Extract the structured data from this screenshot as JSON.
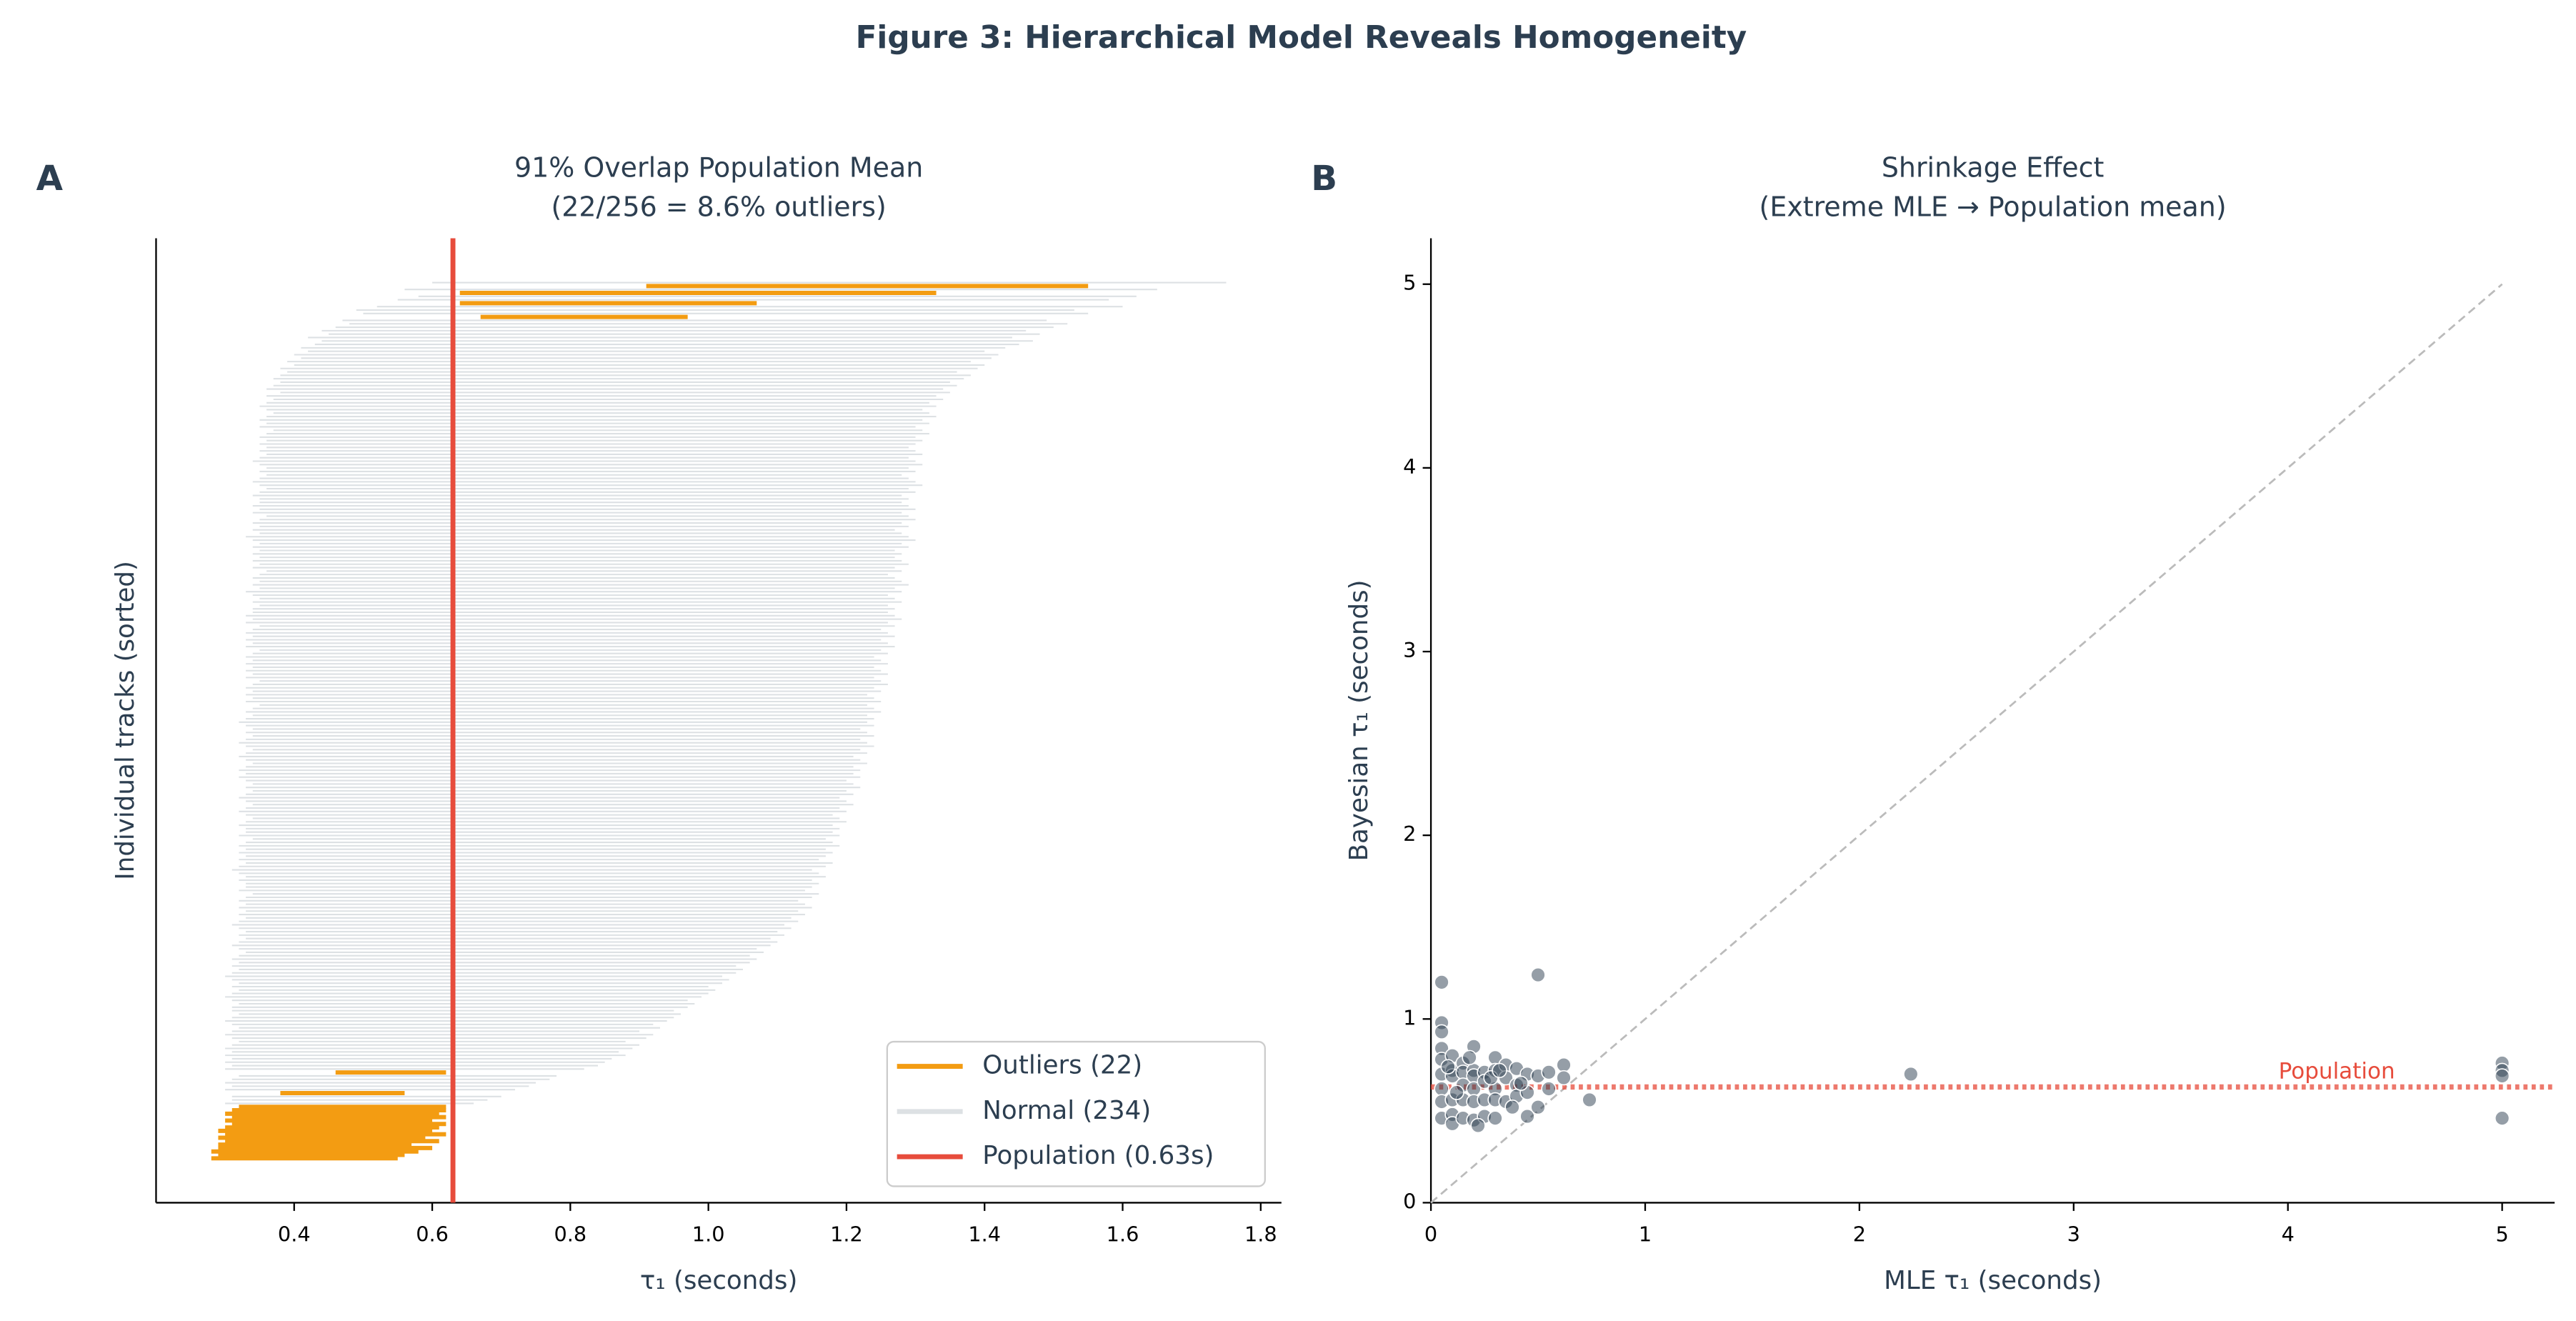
{
  "title": "Figure 3: Hierarchical Model Reveals Homogeneity",
  "chart_data": [
    {
      "type": "interval",
      "panel": "A",
      "title": [
        "91% Overlap Population Mean",
        "(22/256 = 8.6% outliers)"
      ],
      "xlabel": "τ₁ (seconds)",
      "ylabel": "Individual tracks (sorted)",
      "xlim": [
        0.2,
        1.83
      ],
      "xticks": [
        0.4,
        0.6,
        0.8,
        {
          "value": 1,
          "label": "1.0"
        },
        1.2,
        1.4,
        1.6,
        1.8
      ],
      "population": 0.63,
      "legend_loc": "lower right",
      "series": [
        {
          "name": "Outliers (22)",
          "color": "#f39c12"
        },
        {
          "name": "Normal (234)",
          "color": "#dde1e4"
        },
        {
          "name": "Population (0.63s)",
          "color": "#e74c3c"
        }
      ],
      "low": [
        0.28,
        0.29,
        0.28,
        0.29,
        0.29,
        0.3,
        0.29,
        0.3,
        0.29,
        0.3,
        0.31,
        0.3,
        0.31,
        0.3,
        0.31,
        0.32,
        0.3,
        0.31,
        0.31,
        0.38,
        0.3,
        0.31,
        0.3,
        0.31,
        0.32,
        0.46,
        0.3,
        0.31,
        0.3,
        0.31,
        0.3,
        0.31,
        0.3,
        0.31,
        0.32,
        0.31,
        0.3,
        0.31,
        0.32,
        0.31,
        0.3,
        0.31,
        0.32,
        0.31,
        0.31,
        0.32,
        0.31,
        0.3,
        0.31,
        0.32,
        0.31,
        0.32,
        0.31,
        0.3,
        0.31,
        0.32,
        0.31,
        0.32,
        0.31,
        0.32,
        0.33,
        0.32,
        0.31,
        0.32,
        0.33,
        0.32,
        0.33,
        0.32,
        0.31,
        0.32,
        0.33,
        0.32,
        0.33,
        0.32,
        0.33,
        0.32,
        0.33,
        0.34,
        0.32,
        0.33,
        0.33,
        0.32,
        0.33,
        0.32,
        0.31,
        0.32,
        0.33,
        0.32,
        0.33,
        0.32,
        0.33,
        0.32,
        0.33,
        0.34,
        0.32,
        0.33,
        0.33,
        0.32,
        0.33,
        0.34,
        0.33,
        0.32,
        0.33,
        0.34,
        0.33,
        0.32,
        0.33,
        0.34,
        0.33,
        0.34,
        0.33,
        0.32,
        0.33,
        0.32,
        0.33,
        0.34,
        0.33,
        0.32,
        0.33,
        0.34,
        0.33,
        0.32,
        0.33,
        0.34,
        0.33,
        0.34,
        0.33,
        0.32,
        0.33,
        0.34,
        0.33,
        0.34,
        0.35,
        0.33,
        0.34,
        0.33,
        0.34,
        0.33,
        0.34,
        0.35,
        0.33,
        0.34,
        0.33,
        0.34,
        0.33,
        0.34,
        0.33,
        0.34,
        0.35,
        0.33,
        0.34,
        0.33,
        0.34,
        0.33,
        0.34,
        0.35,
        0.33,
        0.34,
        0.33,
        0.34,
        0.34,
        0.35,
        0.34,
        0.35,
        0.34,
        0.33,
        0.35,
        0.34,
        0.35,
        0.34,
        0.35,
        0.36,
        0.34,
        0.35,
        0.34,
        0.35,
        0.34,
        0.35,
        0.34,
        0.35,
        0.34,
        0.33,
        0.35,
        0.34,
        0.35,
        0.34,
        0.35,
        0.36,
        0.34,
        0.35,
        0.34,
        0.35,
        0.35,
        0.34,
        0.35,
        0.36,
        0.35,
        0.34,
        0.35,
        0.36,
        0.35,
        0.36,
        0.35,
        0.34,
        0.35,
        0.36,
        0.35,
        0.36,
        0.35,
        0.36,
        0.35,
        0.36,
        0.37,
        0.35,
        0.36,
        0.35,
        0.36,
        0.37,
        0.36,
        0.35,
        0.36,
        0.37,
        0.36,
        0.38,
        0.36,
        0.37,
        0.38,
        0.37,
        0.38,
        0.39,
        0.38,
        0.4,
        0.39,
        0.41,
        0.4,
        0.42,
        0.41,
        0.43,
        0.44,
        0.42,
        0.45,
        0.44,
        0.46,
        0.48,
        0.47,
        0.67,
        0.5,
        0.49,
        0.52,
        0.64,
        0.55,
        0.58,
        0.64,
        0.56,
        0.91,
        0.6
      ],
      "high": [
        0.55,
        0.56,
        0.58,
        0.6,
        0.57,
        0.61,
        0.59,
        0.62,
        0.6,
        0.61,
        0.62,
        0.6,
        0.62,
        0.61,
        0.62,
        0.62,
        0.66,
        0.68,
        0.7,
        0.56,
        0.72,
        0.74,
        0.75,
        0.77,
        0.78,
        0.62,
        0.82,
        0.84,
        0.85,
        0.86,
        0.88,
        0.87,
        0.89,
        0.9,
        0.88,
        0.91,
        0.92,
        0.9,
        0.93,
        0.92,
        0.94,
        0.95,
        0.96,
        0.95,
        0.97,
        0.98,
        0.97,
        0.99,
        1.0,
        1.01,
        1.0,
        1.02,
        1.03,
        1.02,
        1.04,
        1.05,
        1.04,
        1.06,
        1.07,
        1.06,
        1.08,
        1.07,
        1.09,
        1.1,
        1.09,
        1.11,
        1.1,
        1.12,
        1.11,
        1.13,
        1.12,
        1.14,
        1.13,
        1.15,
        1.14,
        1.13,
        1.15,
        1.16,
        1.14,
        1.15,
        1.16,
        1.15,
        1.17,
        1.16,
        1.15,
        1.17,
        1.18,
        1.16,
        1.17,
        1.18,
        1.17,
        1.19,
        1.18,
        1.17,
        1.19,
        1.18,
        1.19,
        1.18,
        1.2,
        1.19,
        1.18,
        1.2,
        1.19,
        1.21,
        1.2,
        1.19,
        1.21,
        1.2,
        1.22,
        1.21,
        1.2,
        1.22,
        1.21,
        1.22,
        1.21,
        1.23,
        1.22,
        1.21,
        1.23,
        1.22,
        1.24,
        1.23,
        1.22,
        1.24,
        1.23,
        1.22,
        1.24,
        1.23,
        1.24,
        1.23,
        1.25,
        1.24,
        1.23,
        1.25,
        1.24,
        1.23,
        1.25,
        1.24,
        1.26,
        1.25,
        1.24,
        1.26,
        1.25,
        1.24,
        1.26,
        1.25,
        1.24,
        1.26,
        1.25,
        1.27,
        1.26,
        1.25,
        1.27,
        1.26,
        1.25,
        1.27,
        1.26,
        1.28,
        1.27,
        1.26,
        1.27,
        1.26,
        1.28,
        1.27,
        1.26,
        1.28,
        1.27,
        1.29,
        1.28,
        1.27,
        1.26,
        1.28,
        1.27,
        1.29,
        1.28,
        1.27,
        1.28,
        1.27,
        1.29,
        1.28,
        1.3,
        1.29,
        1.28,
        1.27,
        1.29,
        1.28,
        1.3,
        1.29,
        1.28,
        1.3,
        1.29,
        1.28,
        1.29,
        1.28,
        1.3,
        1.29,
        1.31,
        1.3,
        1.29,
        1.28,
        1.3,
        1.29,
        1.31,
        1.3,
        1.29,
        1.31,
        1.3,
        1.29,
        1.3,
        1.31,
        1.3,
        1.32,
        1.31,
        1.3,
        1.32,
        1.31,
        1.33,
        1.32,
        1.31,
        1.33,
        1.32,
        1.34,
        1.33,
        1.35,
        1.34,
        1.36,
        1.35,
        1.37,
        1.38,
        1.36,
        1.39,
        1.4,
        1.38,
        1.41,
        1.42,
        1.4,
        1.43,
        1.45,
        1.47,
        1.44,
        1.48,
        1.46,
        1.5,
        1.52,
        1.49,
        0.97,
        1.55,
        1.53,
        1.6,
        1.07,
        1.58,
        1.62,
        1.33,
        1.65,
        1.55,
        1.75
      ]
    },
    {
      "type": "scatter",
      "panel": "B",
      "title": [
        "Shrinkage Effect",
        "(Extreme MLE → Population mean)"
      ],
      "xlabel": "MLE τ₁ (seconds)",
      "ylabel": "Bayesian τ₁ (seconds)",
      "xlim": [
        0,
        5.245
      ],
      "ylim": [
        0,
        5.25
      ],
      "xticks": [
        0,
        1,
        2,
        3,
        4,
        5
      ],
      "yticks": [
        0,
        1,
        2,
        3,
        4,
        5
      ],
      "color": "#2c3e50",
      "population": 0.63,
      "population_label": "Population",
      "population_color": "#e74c3c",
      "reference_line": {
        "x": [
          0,
          5
        ],
        "y": [
          0,
          5
        ],
        "color": "#bbbbbb"
      },
      "x": [
        0.05,
        0.05,
        0.05,
        0.05,
        0.05,
        0.05,
        0.05,
        0.05,
        0.1,
        0.1,
        0.1,
        0.1,
        0.1,
        0.1,
        0.15,
        0.15,
        0.15,
        0.15,
        0.15,
        0.2,
        0.2,
        0.2,
        0.2,
        0.2,
        0.2,
        0.25,
        0.25,
        0.25,
        0.25,
        0.3,
        0.3,
        0.3,
        0.3,
        0.3,
        0.35,
        0.35,
        0.35,
        0.4,
        0.4,
        0.4,
        0.45,
        0.45,
        0.45,
        0.5,
        0.5,
        0.55,
        0.55,
        0.62,
        0.62,
        0.74,
        0.08,
        0.12,
        0.18,
        0.22,
        0.28,
        0.32,
        0.38,
        0.42,
        2.24,
        5,
        5,
        5,
        5,
        0.5,
        0.05
      ],
      "y": [
        0.98,
        0.93,
        0.84,
        0.78,
        0.7,
        0.62,
        0.55,
        0.46,
        0.8,
        0.72,
        0.69,
        0.56,
        0.48,
        0.43,
        0.76,
        0.71,
        0.64,
        0.56,
        0.46,
        0.85,
        0.72,
        0.69,
        0.62,
        0.55,
        0.45,
        0.71,
        0.66,
        0.56,
        0.47,
        0.79,
        0.72,
        0.62,
        0.56,
        0.46,
        0.75,
        0.68,
        0.55,
        0.73,
        0.64,
        0.58,
        0.7,
        0.6,
        0.47,
        0.69,
        0.52,
        0.71,
        0.62,
        0.75,
        0.68,
        0.56,
        0.74,
        0.6,
        0.79,
        0.42,
        0.68,
        0.72,
        0.52,
        0.65,
        0.7,
        0.76,
        0.72,
        0.69,
        0.46,
        1.24,
        1.2
      ]
    }
  ]
}
